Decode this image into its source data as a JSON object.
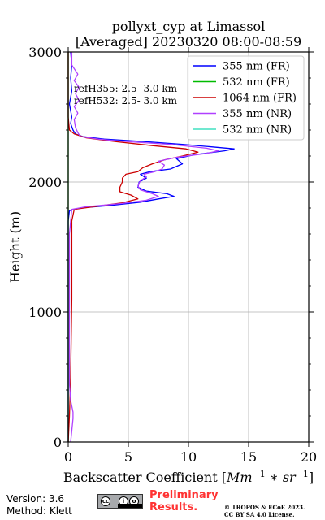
{
  "chart_data": {
    "type": "line",
    "title": "pollyxt_cyp at Limassol",
    "subtitle": "[Averaged] 20230320 08:00-08:59",
    "xlabel": "Backscatter Coefficient [",
    "xlabel_math": "Mm",
    "xlabel_math_sup1": "−1",
    "xlabel_math_mid": " ∗ sr",
    "xlabel_math_sup2": "−1",
    "xlabel_end": "]",
    "ylabel": "Height (m)",
    "xlim": [
      0,
      20
    ],
    "ylim": [
      0,
      3000
    ],
    "xticks": [
      "0",
      "5",
      "10",
      "15",
      "20"
    ],
    "yticks": [
      "0",
      "1000",
      "2000",
      "3000"
    ],
    "grid": true,
    "legend_position": "top-right",
    "annotations": [
      "refH355:  2.5- 3.0 km",
      "refH532:  2.5- 3.0 km"
    ],
    "series": [
      {
        "name": "355 nm (FR)",
        "color": "#0000ff",
        "points": [
          [
            0.0,
            0
          ],
          [
            0.0,
            300
          ],
          [
            0.0,
            600
          ],
          [
            0.0,
            900
          ],
          [
            0.0,
            1200
          ],
          [
            0.0,
            1500
          ],
          [
            0.0,
            1700
          ],
          [
            0.1,
            1780
          ],
          [
            1.0,
            1800
          ],
          [
            3.5,
            1820
          ],
          [
            6.0,
            1845
          ],
          [
            7.5,
            1870
          ],
          [
            8.8,
            1890
          ],
          [
            8.2,
            1910
          ],
          [
            6.5,
            1930
          ],
          [
            5.8,
            1960
          ],
          [
            5.9,
            2000
          ],
          [
            6.5,
            2030
          ],
          [
            6.0,
            2060
          ],
          [
            6.8,
            2080
          ],
          [
            8.5,
            2100
          ],
          [
            9.5,
            2140
          ],
          [
            9.0,
            2180
          ],
          [
            10.5,
            2210
          ],
          [
            13.0,
            2240
          ],
          [
            13.8,
            2255
          ],
          [
            12.0,
            2270
          ],
          [
            9.5,
            2290
          ],
          [
            6.5,
            2310
          ],
          [
            3.0,
            2330
          ],
          [
            1.2,
            2350
          ],
          [
            0.6,
            2370
          ],
          [
            0.4,
            2400
          ],
          [
            0.2,
            2450
          ],
          [
            0.3,
            2500
          ],
          [
            0.1,
            2600
          ],
          [
            0.3,
            2700
          ],
          [
            0.2,
            2800
          ],
          [
            0.3,
            2900
          ],
          [
            0.2,
            3000
          ]
        ]
      },
      {
        "name": "532 nm (FR)",
        "color": "#00bb00",
        "points": [
          [
            0.0,
            0
          ],
          [
            0.0,
            1000
          ],
          [
            0.0,
            2000
          ],
          [
            0.0,
            3000
          ]
        ]
      },
      {
        "name": "1064 nm (FR)",
        "color": "#cc0000",
        "points": [
          [
            0.0,
            0
          ],
          [
            0.1,
            200
          ],
          [
            0.2,
            500
          ],
          [
            0.25,
            800
          ],
          [
            0.3,
            1100
          ],
          [
            0.3,
            1400
          ],
          [
            0.3,
            1700
          ],
          [
            0.5,
            1790
          ],
          [
            2.5,
            1815
          ],
          [
            4.5,
            1840
          ],
          [
            5.8,
            1870
          ],
          [
            5.2,
            1900
          ],
          [
            4.3,
            1925
          ],
          [
            4.3,
            1960
          ],
          [
            4.5,
            2000
          ],
          [
            4.5,
            2030
          ],
          [
            4.8,
            2060
          ],
          [
            5.8,
            2080
          ],
          [
            6.2,
            2110
          ],
          [
            7.0,
            2140
          ],
          [
            8.0,
            2170
          ],
          [
            9.5,
            2200
          ],
          [
            10.8,
            2230
          ],
          [
            9.8,
            2255
          ],
          [
            7.0,
            2280
          ],
          [
            4.0,
            2310
          ],
          [
            1.5,
            2340
          ],
          [
            0.5,
            2370
          ],
          [
            0.1,
            2400
          ],
          [
            0.0,
            2500
          ],
          [
            0.0,
            2700
          ],
          [
            0.0,
            2900
          ],
          [
            0.0,
            3000
          ]
        ]
      },
      {
        "name": "355 nm (NR)",
        "color": "#b040ff",
        "points": [
          [
            0.2,
            0
          ],
          [
            0.4,
            180
          ],
          [
            0.4,
            230
          ],
          [
            0.2,
            320
          ],
          [
            0.1,
            450
          ],
          [
            0.1,
            700
          ],
          [
            0.1,
            1000
          ],
          [
            0.1,
            1300
          ],
          [
            0.1,
            1600
          ],
          [
            0.3,
            1790
          ],
          [
            1.5,
            1810
          ],
          [
            4.5,
            1835
          ],
          [
            6.5,
            1860
          ],
          [
            7.5,
            1890
          ],
          [
            7.0,
            1910
          ],
          [
            6.0,
            1940
          ],
          [
            5.8,
            1970
          ],
          [
            6.0,
            2010
          ],
          [
            6.5,
            2040
          ],
          [
            6.3,
            2060
          ],
          [
            7.2,
            2080
          ],
          [
            7.8,
            2100
          ],
          [
            8.0,
            2130
          ],
          [
            7.5,
            2160
          ],
          [
            9.0,
            2190
          ],
          [
            11.5,
            2220
          ],
          [
            12.5,
            2240
          ],
          [
            11.5,
            2260
          ],
          [
            8.5,
            2290
          ],
          [
            5.0,
            2310
          ],
          [
            2.5,
            2330
          ],
          [
            1.0,
            2350
          ],
          [
            0.8,
            2380
          ],
          [
            0.6,
            2420
          ],
          [
            0.5,
            2480
          ],
          [
            0.8,
            2530
          ],
          [
            0.5,
            2580
          ],
          [
            0.9,
            2630
          ],
          [
            0.6,
            2680
          ],
          [
            0.9,
            2730
          ],
          [
            0.5,
            2780
          ],
          [
            0.8,
            2830
          ],
          [
            0.3,
            2900
          ],
          [
            0.3,
            3000
          ]
        ]
      },
      {
        "name": "532 nm (NR)",
        "color": "#40e0c0",
        "points": []
      }
    ]
  },
  "footer": {
    "version": "Version: 3.6",
    "method": "Method: Klett",
    "preliminary_line1": "Preliminary",
    "preliminary_line2": "Results.",
    "copyright_line1": "© TROPOS & ECoE 2023.",
    "copyright_line2": "CC BY SA 4.0 License.",
    "license_logo": "cc-by-sa-logo"
  }
}
